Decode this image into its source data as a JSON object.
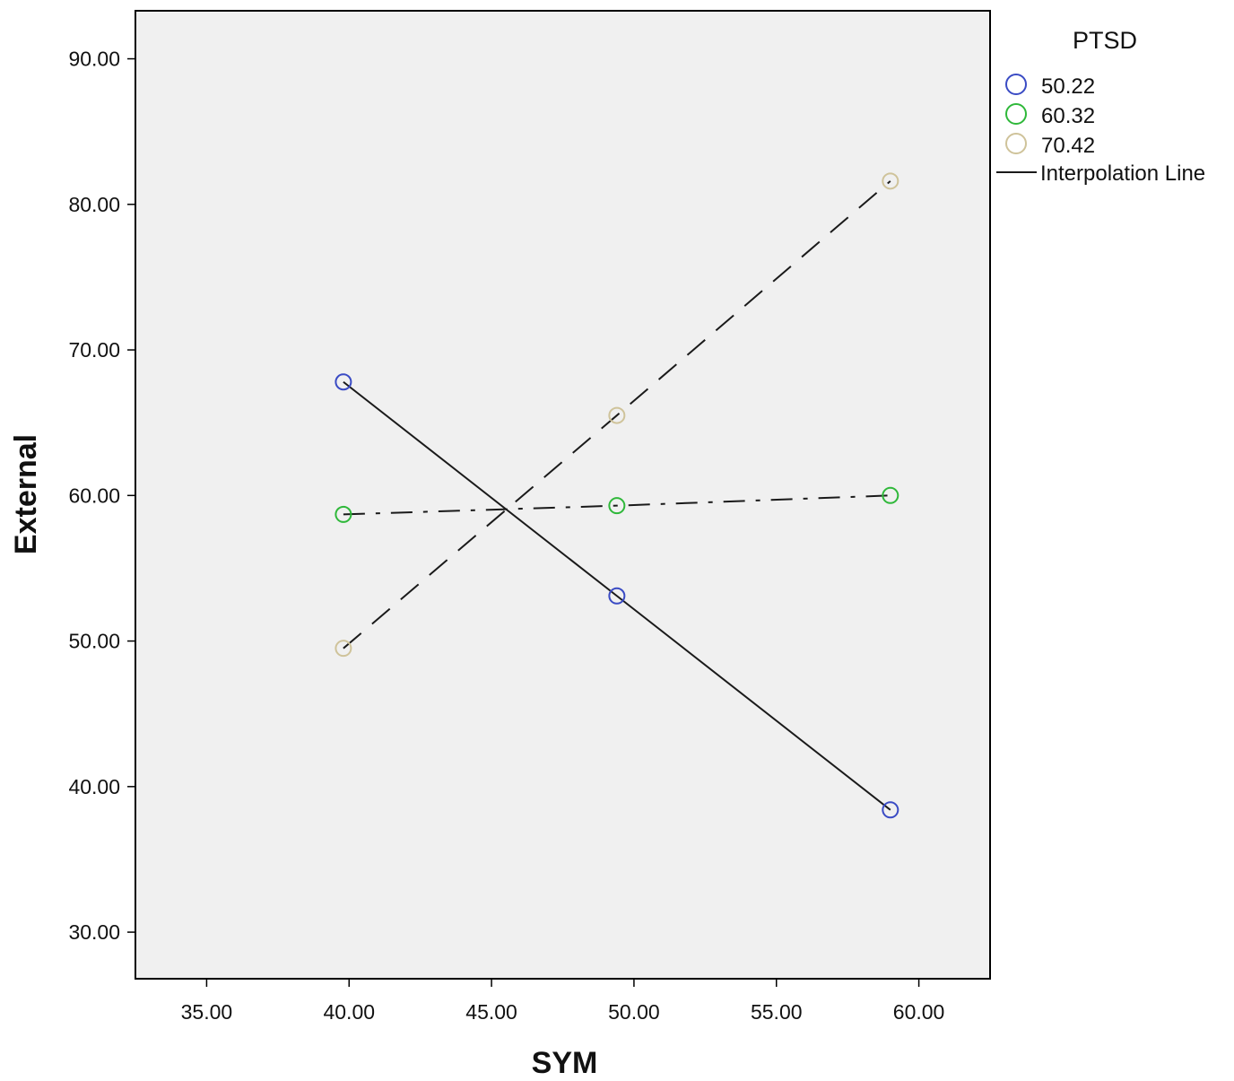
{
  "chart_data": {
    "type": "line",
    "title": "",
    "xlabel": "SYM",
    "ylabel": "External",
    "xlim": [
      32.5,
      62.5
    ],
    "ylim": [
      26.8,
      93.3
    ],
    "x_ticks": [
      35,
      40,
      45,
      50,
      55,
      60
    ],
    "x_tick_labels": [
      "35.00",
      "40.00",
      "45.00",
      "50.00",
      "55.00",
      "60.00"
    ],
    "y_ticks": [
      30,
      40,
      50,
      60,
      70,
      80,
      90
    ],
    "y_tick_labels": [
      "30.00",
      "40.00",
      "50.00",
      "60.00",
      "70.00",
      "80.00",
      "90.00"
    ],
    "grid": false,
    "plot_background": "#f0f0f0",
    "legend": {
      "title": "PTSD",
      "placement": "right",
      "interpolation_label": "Interpolation Line"
    },
    "series": [
      {
        "name": "50.22",
        "color": "#3a4bc4",
        "line_style": "solid",
        "x": [
          39.8,
          49.4,
          59.0
        ],
        "y": [
          67.8,
          53.1,
          38.4
        ]
      },
      {
        "name": "60.32",
        "color": "#2fb83a",
        "line_style": "dash-dot",
        "x": [
          39.8,
          49.4,
          59.0
        ],
        "y": [
          58.7,
          59.3,
          60.0
        ]
      },
      {
        "name": "70.42",
        "color": "#cfc39a",
        "line_style": "dashed",
        "x": [
          39.8,
          49.4,
          59.0
        ],
        "y": [
          49.5,
          65.5,
          81.6
        ]
      }
    ]
  }
}
